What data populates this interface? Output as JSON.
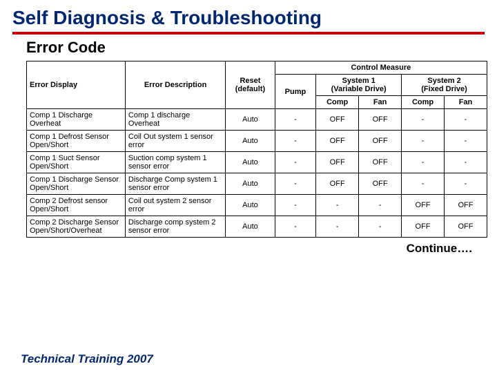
{
  "title": "Self Diagnosis & Troubleshooting",
  "subtitle": "Error Code",
  "colors": {
    "title_color": "#002776",
    "rule_color": "#c00000",
    "border_color": "#000000",
    "background": "#ffffff"
  },
  "table": {
    "header": {
      "error_display": "Error Display",
      "error_description": "Error Description",
      "reset": "Reset",
      "reset_sub": "(default)",
      "control_measure": "Control Measure",
      "pump": "Pump",
      "system1": "System 1",
      "system1_sub": "(Variable Drive)",
      "system2": "System 2",
      "system2_sub": "(Fixed Drive)",
      "comp": "Comp",
      "fan": "Fan"
    },
    "rows": [
      {
        "display": "Comp 1 Discharge Overheat",
        "description": "Comp 1 discharge Overheat",
        "reset": "Auto",
        "pump": "-",
        "s1comp": "OFF",
        "s1fan": "OFF",
        "s2comp": "-",
        "s2fan": "-"
      },
      {
        "display": "Comp 1 Defrost Sensor Open/Short",
        "description": "Coil Out system 1 sensor error",
        "reset": "Auto",
        "pump": "-",
        "s1comp": "OFF",
        "s1fan": "OFF",
        "s2comp": "-",
        "s2fan": "-"
      },
      {
        "display": "Comp  1 Suct Sensor Open/Short",
        "description": "Suction comp system 1 sensor error",
        "reset": "Auto",
        "pump": "-",
        "s1comp": "OFF",
        "s1fan": "OFF",
        "s2comp": "-",
        "s2fan": "-"
      },
      {
        "display": "Comp 1 Discharge Sensor Open/Short",
        "description": "Discharge Comp system 1 sensor error",
        "reset": "Auto",
        "pump": "-",
        "s1comp": "OFF",
        "s1fan": "OFF",
        "s2comp": "-",
        "s2fan": "-"
      },
      {
        "display": "Comp 2 Defrost sensor Open/Short",
        "description": "Coil out system 2 sensor error",
        "reset": "Auto",
        "pump": "-",
        "s1comp": "-",
        "s1fan": "-",
        "s2comp": "OFF",
        "s2fan": "OFF"
      },
      {
        "display": "Comp 2 Discharge Sensor Open/Short/Overheat",
        "description": "Discharge comp system 2 sensor  error",
        "reset": "Auto",
        "pump": "-",
        "s1comp": "-",
        "s1fan": "-",
        "s2comp": "OFF",
        "s2fan": "OFF"
      }
    ]
  },
  "continue_label": "Continue….",
  "footer": "Technical Training 2007"
}
